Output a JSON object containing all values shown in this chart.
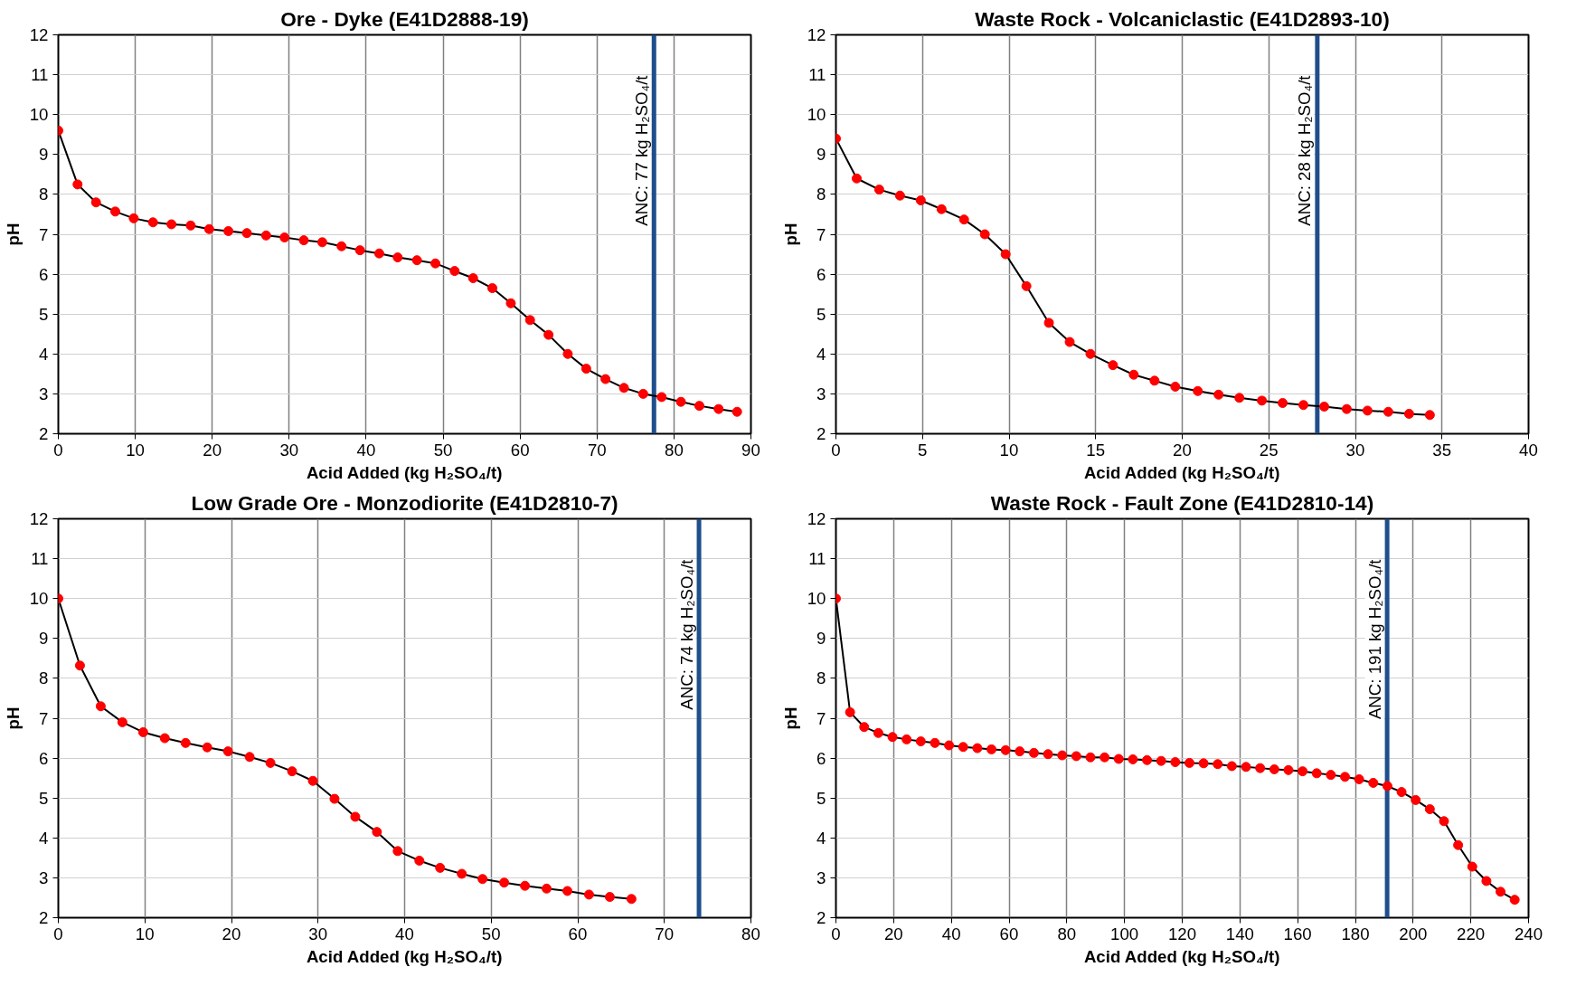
{
  "chart_data": [
    {
      "type": "line",
      "title": "Ore - Dyke (E41D2888-19)",
      "xlabel": "Acid Added (kg H₂SO₄/t)",
      "ylabel": "pH",
      "xlim": [
        0,
        90
      ],
      "xticks": [
        0,
        10,
        20,
        30,
        40,
        50,
        60,
        70,
        80,
        90
      ],
      "ylim": [
        2,
        12
      ],
      "yticks": [
        2,
        3,
        4,
        5,
        6,
        7,
        8,
        9,
        10,
        11,
        12
      ],
      "grid": true,
      "marker": "circle",
      "line_style": "solid",
      "x": [
        0,
        2.5,
        4.9,
        7.4,
        9.8,
        12.3,
        14.7,
        17.2,
        19.6,
        22.1,
        24.5,
        27,
        29.4,
        31.9,
        34.3,
        36.8,
        39.2,
        41.7,
        44.1,
        46.6,
        49,
        51.5,
        53.9,
        56.4,
        58.8,
        61.3,
        63.7,
        66.2,
        68.6,
        71.1,
        73.5,
        76,
        78.4,
        80.9,
        83.3,
        85.8,
        88.2
      ],
      "series": [
        {
          "color": "#ff0000",
          "values": [
            9.6,
            8.25,
            7.8,
            7.57,
            7.4,
            7.3,
            7.25,
            7.22,
            7.13,
            7.08,
            7.03,
            6.97,
            6.92,
            6.85,
            6.8,
            6.7,
            6.6,
            6.52,
            6.42,
            6.35,
            6.27,
            6.08,
            5.9,
            5.65,
            5.27,
            4.85,
            4.48,
            4.0,
            3.63,
            3.37,
            3.15,
            3.0,
            2.92,
            2.8,
            2.7,
            2.62,
            2.55
          ]
        }
      ],
      "ref_lines": [
        {
          "axis": "x",
          "value": 77.4,
          "label": "ANC: 77 kg H₂SO₄/t",
          "color": "#1f4e8c"
        }
      ]
    },
    {
      "type": "line",
      "title": "Waste Rock - Volcaniclastic (E41D2893-10)",
      "xlabel": "Acid Added (kg H₂SO₄/t)",
      "ylabel": "pH",
      "xlim": [
        0,
        40
      ],
      "xticks": [
        0,
        5,
        10,
        15,
        20,
        25,
        30,
        35,
        40
      ],
      "ylim": [
        2,
        12
      ],
      "yticks": [
        2,
        3,
        4,
        5,
        6,
        7,
        8,
        9,
        10,
        11,
        12
      ],
      "grid": true,
      "marker": "circle",
      "line_style": "solid",
      "x": [
        0,
        1.2,
        2.5,
        3.7,
        4.9,
        6.1,
        7.4,
        8.6,
        9.8,
        11.0,
        12.3,
        13.5,
        14.7,
        16.0,
        17.2,
        18.4,
        19.6,
        20.9,
        22.1,
        23.3,
        24.6,
        25.8,
        27.0,
        28.2,
        29.5,
        30.7,
        31.9,
        33.1,
        34.3
      ],
      "series": [
        {
          "color": "#ff0000",
          "values": [
            9.4,
            8.4,
            8.12,
            7.97,
            7.85,
            7.63,
            7.37,
            7.0,
            6.5,
            5.7,
            4.78,
            4.3,
            4.0,
            3.72,
            3.48,
            3.33,
            3.18,
            3.07,
            2.98,
            2.9,
            2.83,
            2.77,
            2.72,
            2.68,
            2.62,
            2.58,
            2.55,
            2.5,
            2.47
          ]
        }
      ],
      "ref_lines": [
        {
          "axis": "x",
          "value": 27.8,
          "label": "ANC: 28 kg H₂SO₄/t",
          "color": "#1f4e8c"
        }
      ]
    },
    {
      "type": "line",
      "title": "Low Grade Ore - Monzodiorite (E41D2810-7)",
      "xlabel": "Acid Added (kg H₂SO₄/t)",
      "ylabel": "pH",
      "xlim": [
        0,
        80
      ],
      "xticks": [
        0,
        10,
        20,
        30,
        40,
        50,
        60,
        70,
        80
      ],
      "ylim": [
        2,
        12
      ],
      "yticks": [
        2,
        3,
        4,
        5,
        6,
        7,
        8,
        9,
        10,
        11,
        12
      ],
      "grid": true,
      "marker": "circle",
      "line_style": "solid",
      "x": [
        0,
        2.5,
        4.9,
        7.4,
        9.8,
        12.3,
        14.7,
        17.2,
        19.6,
        22.1,
        24.5,
        27.0,
        29.4,
        31.9,
        34.3,
        36.8,
        39.2,
        41.7,
        44.1,
        46.6,
        49.0,
        51.5,
        53.9,
        56.4,
        58.8,
        61.3,
        63.7,
        66.2
      ],
      "series": [
        {
          "color": "#ff0000",
          "values": [
            10.0,
            8.32,
            7.3,
            6.9,
            6.65,
            6.5,
            6.38,
            6.27,
            6.17,
            6.03,
            5.88,
            5.67,
            5.43,
            4.98,
            4.53,
            4.15,
            3.67,
            3.43,
            3.25,
            3.1,
            2.97,
            2.88,
            2.8,
            2.73,
            2.67,
            2.58,
            2.52,
            2.47
          ]
        }
      ],
      "ref_lines": [
        {
          "axis": "x",
          "value": 74,
          "label": "ANC: 74 kg H₂SO₄/t",
          "color": "#1f4e8c"
        }
      ]
    },
    {
      "type": "line",
      "title": "Waste Rock - Fault Zone (E41D2810-14)",
      "xlabel": "Acid Added (kg H₂SO₄/t)",
      "ylabel": "pH",
      "xlim": [
        0,
        240
      ],
      "xticks": [
        0,
        20,
        40,
        60,
        80,
        100,
        120,
        140,
        160,
        180,
        200,
        220,
        240
      ],
      "ylim": [
        2,
        12
      ],
      "yticks": [
        2,
        3,
        4,
        5,
        6,
        7,
        8,
        9,
        10,
        11,
        12
      ],
      "grid": true,
      "marker": "circle",
      "line_style": "solid",
      "x": [
        0,
        4.9,
        9.8,
        14.7,
        19.6,
        24.5,
        29.4,
        34.3,
        39.2,
        44.1,
        49,
        53.9,
        58.8,
        63.7,
        68.6,
        73.5,
        78.4,
        83.3,
        88.2,
        93.1,
        98,
        102.9,
        107.8,
        112.7,
        117.6,
        122.5,
        127.4,
        132.3,
        137.2,
        142.1,
        147,
        151.9,
        156.8,
        161.7,
        166.6,
        171.5,
        176.4,
        181.3,
        186.2,
        191.1,
        196,
        200.9,
        205.8,
        210.7,
        215.6,
        220.5,
        225.4,
        230.3,
        235.2
      ],
      "series": [
        {
          "color": "#ff0000",
          "values": [
            10,
            7.15,
            6.78,
            6.63,
            6.53,
            6.47,
            6.42,
            6.38,
            6.32,
            6.28,
            6.25,
            6.22,
            6.2,
            6.17,
            6.13,
            6.1,
            6.07,
            6.05,
            6.02,
            6.02,
            5.98,
            5.97,
            5.95,
            5.93,
            5.9,
            5.88,
            5.87,
            5.85,
            5.8,
            5.78,
            5.75,
            5.72,
            5.7,
            5.67,
            5.62,
            5.58,
            5.53,
            5.47,
            5.38,
            5.3,
            5.15,
            4.95,
            4.72,
            4.42,
            3.82,
            3.28,
            2.92,
            2.65,
            2.45
          ]
        }
      ],
      "ref_lines": [
        {
          "axis": "x",
          "value": 191,
          "label": "ANC: 191 kg H₂SO₄/t",
          "color": "#1f4e8c"
        }
      ]
    }
  ]
}
